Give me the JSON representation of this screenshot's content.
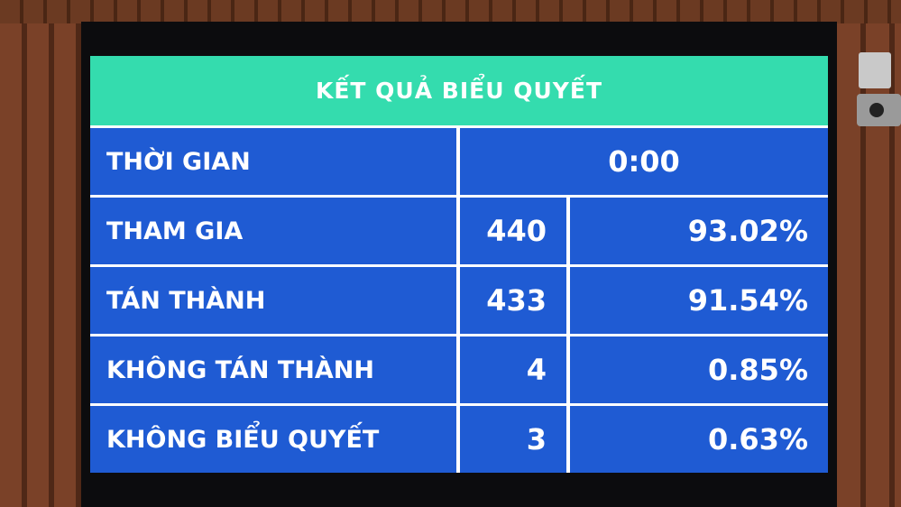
{
  "title": "KẾT QUẢ BIỂU QUYẾT",
  "colors": {
    "header": "#34dcae",
    "cells": "#1f5bd3",
    "text": "#ffffff"
  },
  "time": {
    "label": "THỜI GIAN",
    "value": "0:00"
  },
  "rows": [
    {
      "label": "THAM GIA",
      "count": "440",
      "percent": "93.02%"
    },
    {
      "label": "TÁN THÀNH",
      "count": "433",
      "percent": "91.54%"
    },
    {
      "label": "KHÔNG TÁN THÀNH",
      "count": "4",
      "percent": "0.85%"
    },
    {
      "label": "KHÔNG BIỂU QUYẾT",
      "count": "3",
      "percent": "0.63%"
    }
  ]
}
